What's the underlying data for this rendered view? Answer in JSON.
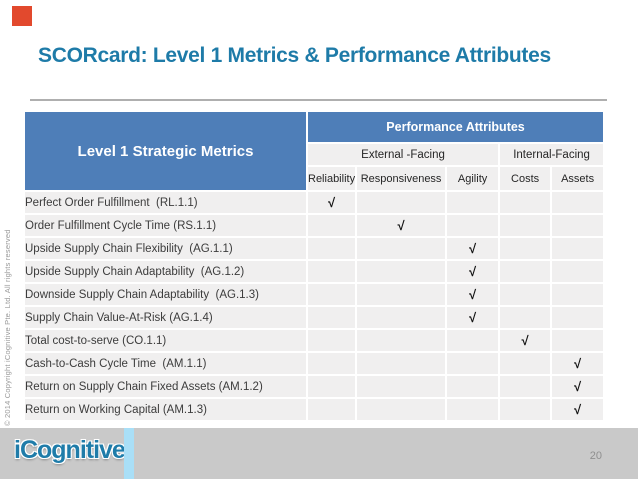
{
  "slide": {
    "title": "SCORcard: Level 1 Metrics & Performance Attributes",
    "page_number": "20",
    "vertical_copyright": "© 2014 Copyright iCognitive Pte. Ltd. All rights reserved",
    "logo_text": "iCognitive"
  },
  "colors": {
    "title_teal": "#1E7BA8",
    "header_blue": "#4E7EB8",
    "row_gray": "#F0EFEF",
    "footer_gray": "#C9C9C9",
    "accent_bar_blue": "#A9DFF7",
    "accent_square_red": "#E2492D",
    "divider_gray": "#AFAFAF"
  },
  "table": {
    "left_header": "Level 1 Strategic Metrics",
    "top_header": "Performance Attributes",
    "group_headers": [
      {
        "label": "External -Facing"
      },
      {
        "label": "Internal-Facing"
      }
    ],
    "columns": [
      "Reliability",
      "Responsiveness",
      "Agility",
      "Costs",
      "Assets"
    ],
    "check_symbol": "√",
    "rows": [
      {
        "metric": "Perfect Order Fulfillment  (RL.1.1)",
        "checks": [
          "Reliability"
        ]
      },
      {
        "metric": "Order Fulfillment Cycle Time (RS.1.1)",
        "checks": [
          "Responsiveness"
        ]
      },
      {
        "metric": "Upside Supply Chain Flexibility  (AG.1.1)",
        "checks": [
          "Agility"
        ]
      },
      {
        "metric": "Upside Supply Chain Adaptability  (AG.1.2)",
        "checks": [
          "Agility"
        ]
      },
      {
        "metric": "Downside Supply Chain Adaptability  (AG.1.3)",
        "checks": [
          "Agility"
        ]
      },
      {
        "metric": "Supply Chain Value-At-Risk (AG.1.4)",
        "checks": [
          "Agility"
        ]
      },
      {
        "metric": "Total cost-to-serve (CO.1.1)",
        "checks": [
          "Costs"
        ]
      },
      {
        "metric": "Cash-to-Cash Cycle Time  (AM.1.1)",
        "checks": [
          "Assets"
        ]
      },
      {
        "metric": "Return on Supply Chain Fixed Assets (AM.1.2)",
        "checks": [
          "Assets"
        ]
      },
      {
        "metric": "Return on Working Capital (AM.1.3)",
        "checks": [
          "Assets"
        ]
      }
    ]
  }
}
